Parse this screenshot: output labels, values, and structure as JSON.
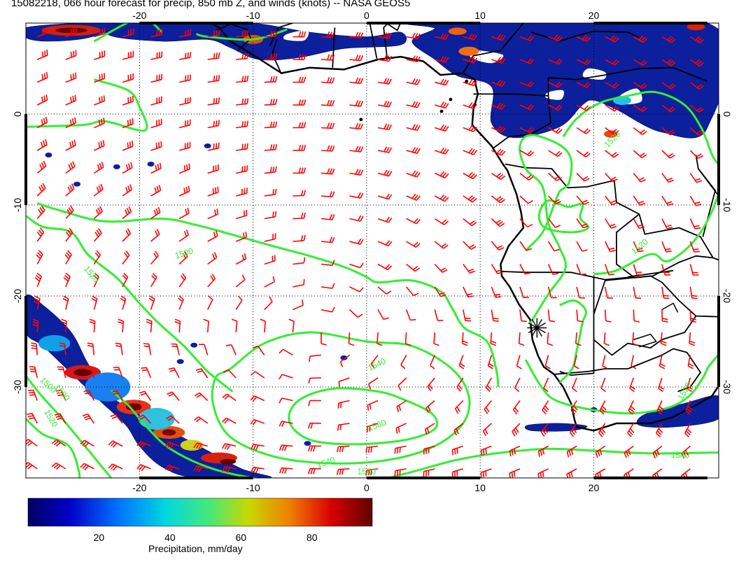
{
  "title": "15082218, 066 hour forecast for precip, 850 mb Z, and winds (knots) -- NASA GEOS5",
  "map": {
    "lon_ticks": [
      "-20",
      "-10",
      "0",
      "10",
      "20"
    ],
    "lat_ticks": [
      "0",
      "-10",
      "-20",
      "-30"
    ],
    "lon_range": [
      -30,
      31
    ],
    "lat_range": [
      -40,
      10
    ],
    "contour_labels": [
      "1500",
      "1520",
      "1520",
      "1540",
      "1560",
      "1540",
      "1520",
      "1500",
      "1520",
      "1540",
      "1500",
      "1520",
      "1540"
    ],
    "colors": {
      "wind": "#ff0000",
      "contour": "#33ee33",
      "coast": "#000000",
      "precip_low": "#000080",
      "precip_high": "#800000"
    }
  },
  "colorbar": {
    "ticks": [
      "20",
      "40",
      "60",
      "80"
    ],
    "label": "Precipitation, mm/day",
    "range": [
      0,
      97
    ]
  }
}
